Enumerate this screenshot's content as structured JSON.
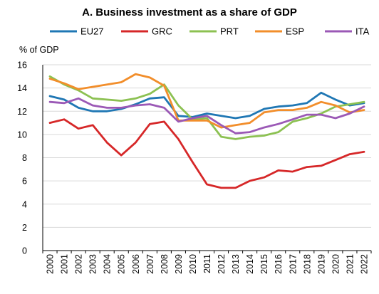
{
  "chart_data": {
    "type": "line",
    "title": "A. Business investment as a share of GDP",
    "ylabel": "% of GDP",
    "xlabel": "",
    "x": [
      "2000",
      "2001",
      "2002",
      "2003",
      "2004",
      "2005",
      "2006",
      "2007",
      "2008",
      "2009",
      "2010",
      "2011",
      "2012",
      "2013",
      "2014",
      "2015",
      "2016",
      "2017",
      "2018",
      "2019",
      "2020",
      "2021",
      "2022"
    ],
    "ylim": [
      0,
      16
    ],
    "yticks": [
      0,
      2,
      4,
      6,
      8,
      10,
      12,
      14,
      16
    ],
    "grid": "horizontal",
    "legend_position": "top",
    "series": [
      {
        "name": "EU27",
        "color": "#1f77b4",
        "values": [
          13.3,
          13.0,
          12.3,
          12.0,
          12.0,
          12.2,
          12.6,
          13.1,
          13.2,
          11.6,
          11.5,
          11.8,
          11.6,
          11.4,
          11.6,
          12.2,
          12.4,
          12.5,
          12.7,
          13.6,
          13.0,
          12.5,
          12.7
        ]
      },
      {
        "name": "GRC",
        "color": "#d62728",
        "values": [
          11.0,
          11.3,
          10.5,
          10.8,
          9.3,
          8.2,
          9.3,
          10.9,
          11.1,
          9.6,
          7.6,
          5.7,
          5.4,
          5.4,
          6.0,
          6.3,
          6.9,
          6.8,
          7.2,
          7.3,
          7.8,
          8.3,
          8.5
        ]
      },
      {
        "name": "PRT",
        "color": "#8cc152",
        "values": [
          15.0,
          14.3,
          13.8,
          13.1,
          13.0,
          12.9,
          13.1,
          13.5,
          14.3,
          12.5,
          11.3,
          11.4,
          9.8,
          9.6,
          9.8,
          9.9,
          10.2,
          11.1,
          11.4,
          11.8,
          12.4,
          12.6,
          12.8
        ]
      },
      {
        "name": "ESP",
        "color": "#f28e2b",
        "values": [
          14.8,
          14.4,
          13.9,
          14.1,
          14.3,
          14.5,
          15.2,
          14.9,
          14.2,
          11.2,
          11.2,
          11.2,
          10.6,
          10.8,
          11.0,
          11.9,
          12.1,
          12.1,
          12.3,
          12.8,
          12.5,
          11.9,
          12.1
        ]
      },
      {
        "name": "ITA",
        "color": "#9b59b6",
        "values": [
          12.8,
          12.7,
          13.1,
          12.5,
          12.3,
          12.3,
          12.5,
          12.6,
          12.3,
          11.1,
          11.4,
          11.6,
          10.8,
          10.1,
          10.2,
          10.6,
          10.9,
          11.3,
          11.7,
          11.7,
          11.4,
          11.8,
          12.4
        ]
      }
    ]
  }
}
